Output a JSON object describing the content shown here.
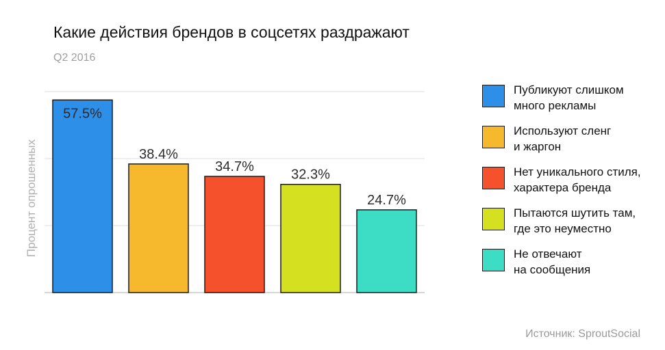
{
  "title": "Какие действия брендов в соцсетях раздражают",
  "subtitle": "Q2 2016",
  "source": "Источник: SproutSocial",
  "chart_data": {
    "type": "bar",
    "title": "Какие действия брендов в соцсетях раздражают",
    "subtitle": "Q2 2016",
    "ylabel": "Процент опрошенных",
    "ylim": [
      0,
      60
    ],
    "grid": true,
    "legend_position": "right",
    "categories": [
      "Публикуют слишком много рекламы",
      "Используют сленг и жаргон",
      "Нет уникального стиля, характера бренда",
      "Пытаются шутить там, где это неуместно",
      "Не отвечают на сообщения"
    ],
    "legend_lines": [
      [
        "Публикуют слишком",
        "много рекламы"
      ],
      [
        "Используют сленг",
        "и жаргон"
      ],
      [
        "Нет уникального стиля,",
        "характера бренда"
      ],
      [
        "Пытаются шутить там,",
        "где это неуместно"
      ],
      [
        "Не отвечают",
        "на сообщения"
      ]
    ],
    "values": [
      57.5,
      38.4,
      34.7,
      32.3,
      24.7
    ],
    "labels": [
      "57.5%",
      "38.4%",
      "34.7%",
      "32.3%",
      "24.7%"
    ],
    "colors": [
      "#2e8fe8",
      "#f6b92e",
      "#f4512c",
      "#d5e021",
      "#3ddcc4"
    ]
  }
}
